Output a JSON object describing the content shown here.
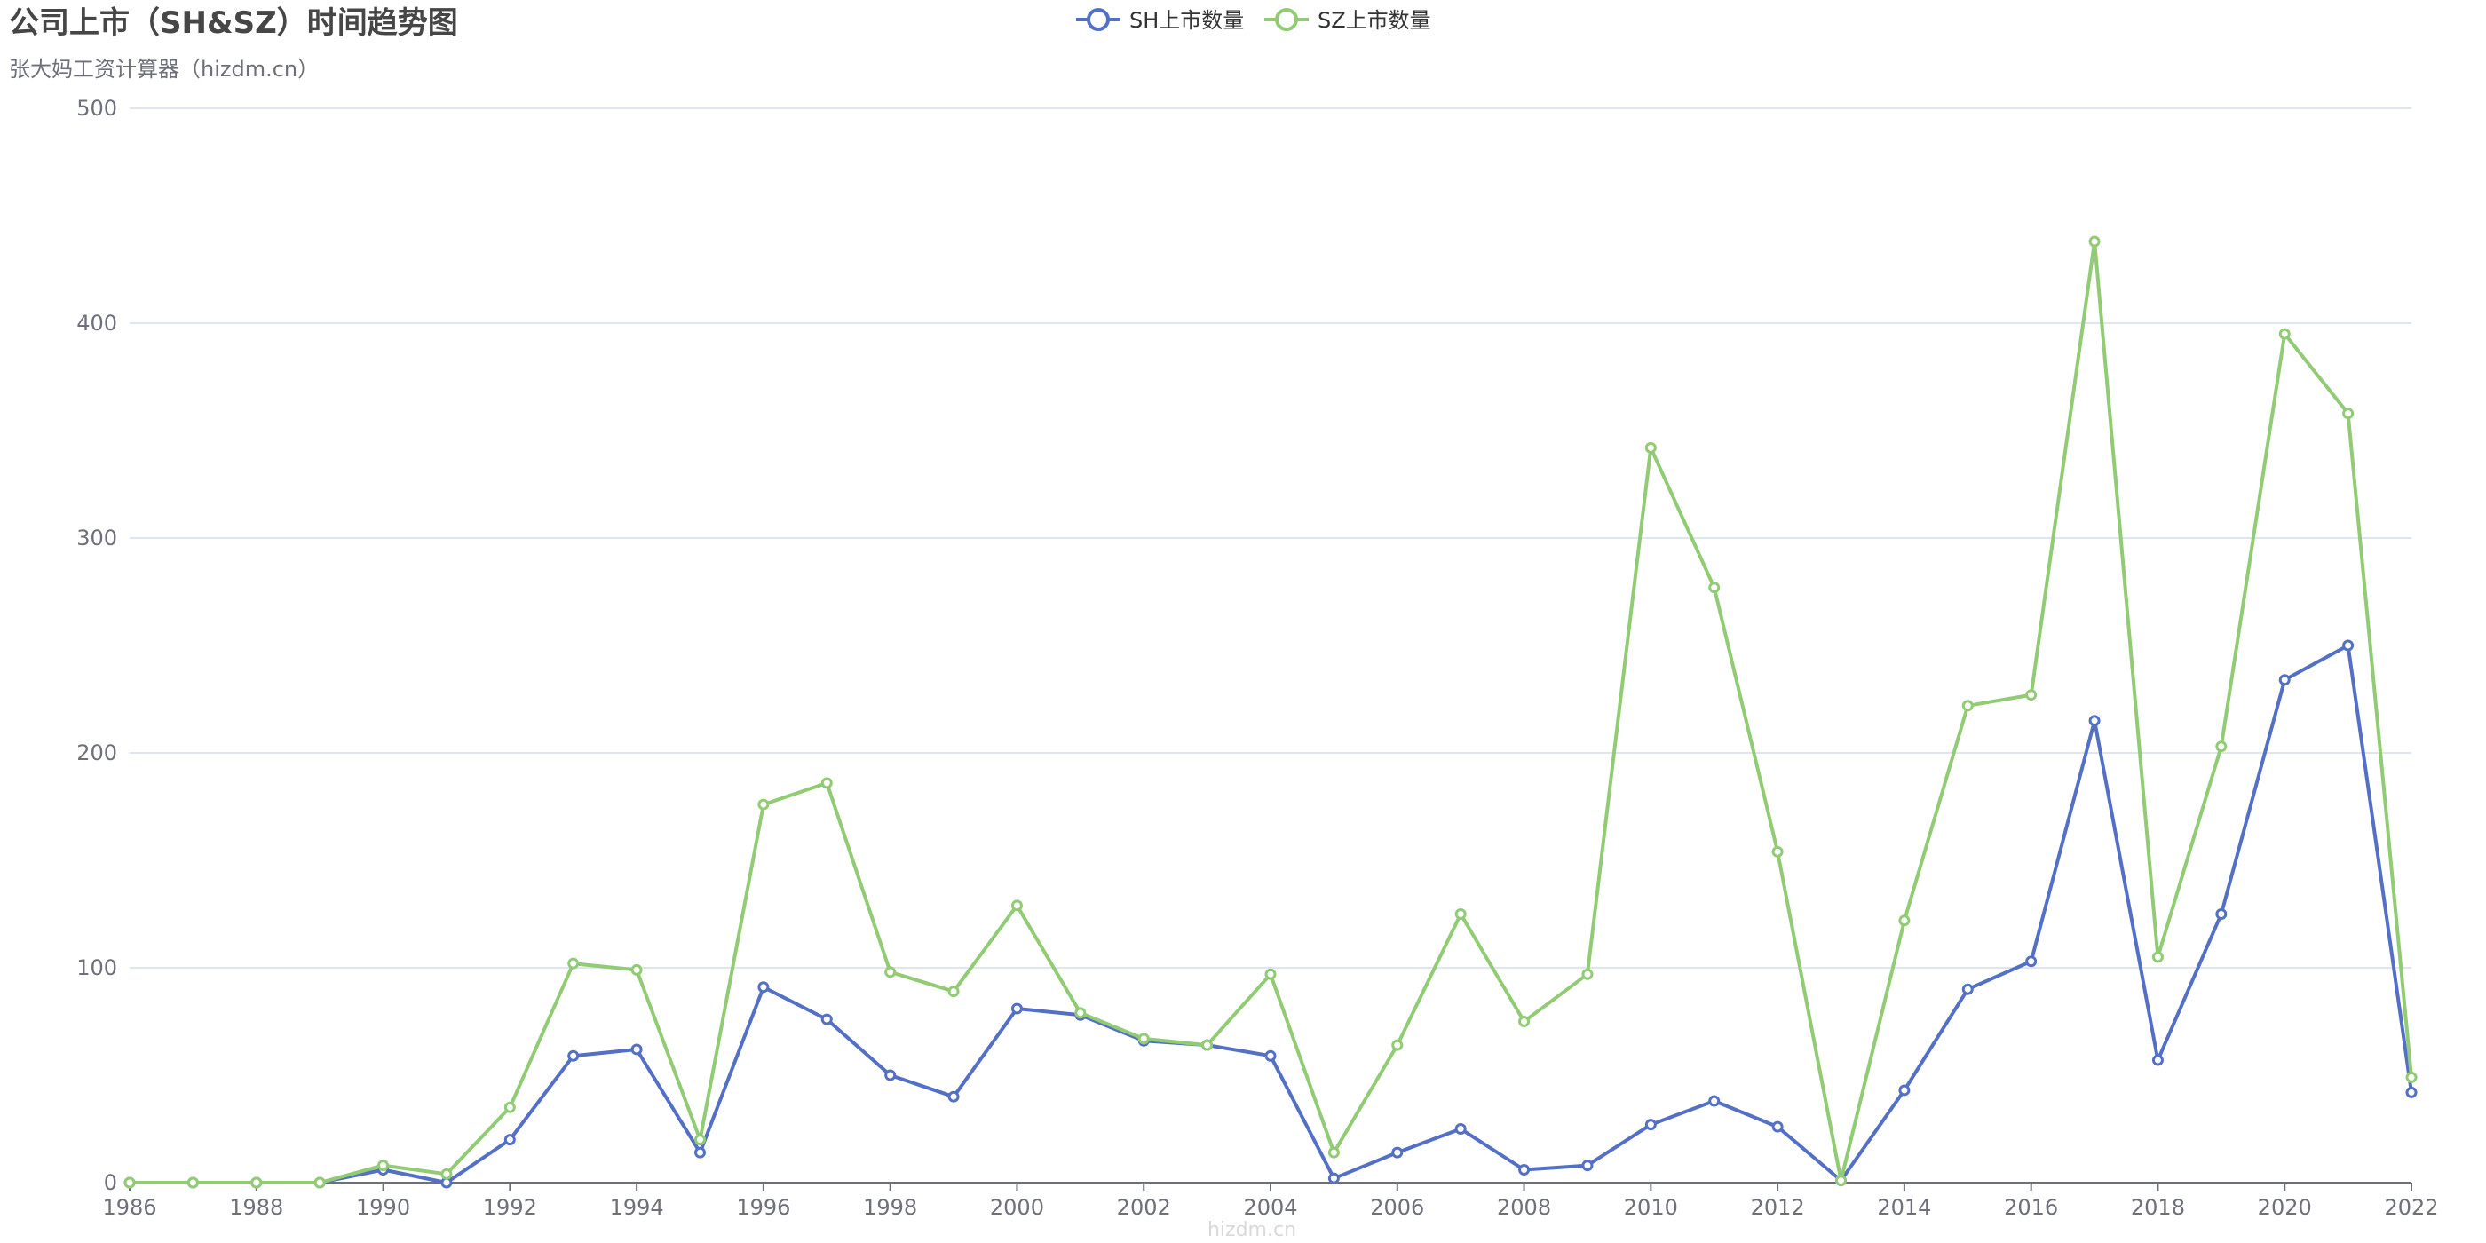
{
  "chart_data": {
    "type": "line",
    "title": "公司上市（SH&SZ）时间趋势图",
    "subtitle": "张大妈工资计算器（hizdm.cn）",
    "watermark": "hizdm.cn",
    "xlabel": "",
    "ylabel": "",
    "ylim": [
      0,
      500
    ],
    "y_ticks": [
      0,
      100,
      200,
      300,
      400,
      500
    ],
    "x": [
      1986,
      1987,
      1988,
      1989,
      1990,
      1991,
      1992,
      1993,
      1994,
      1995,
      1996,
      1997,
      1998,
      1999,
      2000,
      2001,
      2002,
      2003,
      2004,
      2005,
      2006,
      2007,
      2008,
      2009,
      2010,
      2011,
      2012,
      2013,
      2014,
      2015,
      2016,
      2017,
      2018,
      2019,
      2020,
      2021,
      2022
    ],
    "x_tick_labels": [
      "1986",
      "1988",
      "1990",
      "1992",
      "1994",
      "1996",
      "1998",
      "2000",
      "2002",
      "2004",
      "2006",
      "2008",
      "2010",
      "2012",
      "2014",
      "2016",
      "2018",
      "2020",
      "2022"
    ],
    "grid": true,
    "legend_position": "top-center",
    "series": [
      {
        "name": "SH上市数量",
        "color": "#5470c6",
        "values": [
          0,
          0,
          0,
          0,
          6,
          0,
          20,
          59,
          62,
          14,
          91,
          76,
          50,
          40,
          81,
          78,
          66,
          64,
          59,
          2,
          14,
          25,
          6,
          8,
          27,
          38,
          26,
          1,
          43,
          90,
          103,
          215,
          57,
          125,
          234,
          250,
          42
        ]
      },
      {
        "name": "SZ上市数量",
        "color": "#91cc75",
        "values": [
          0,
          0,
          0,
          0,
          8,
          4,
          35,
          102,
          99,
          20,
          176,
          186,
          98,
          89,
          129,
          79,
          67,
          64,
          97,
          14,
          64,
          125,
          75,
          97,
          342,
          277,
          154,
          1,
          122,
          222,
          227,
          438,
          105,
          203,
          395,
          358,
          49
        ]
      }
    ]
  }
}
